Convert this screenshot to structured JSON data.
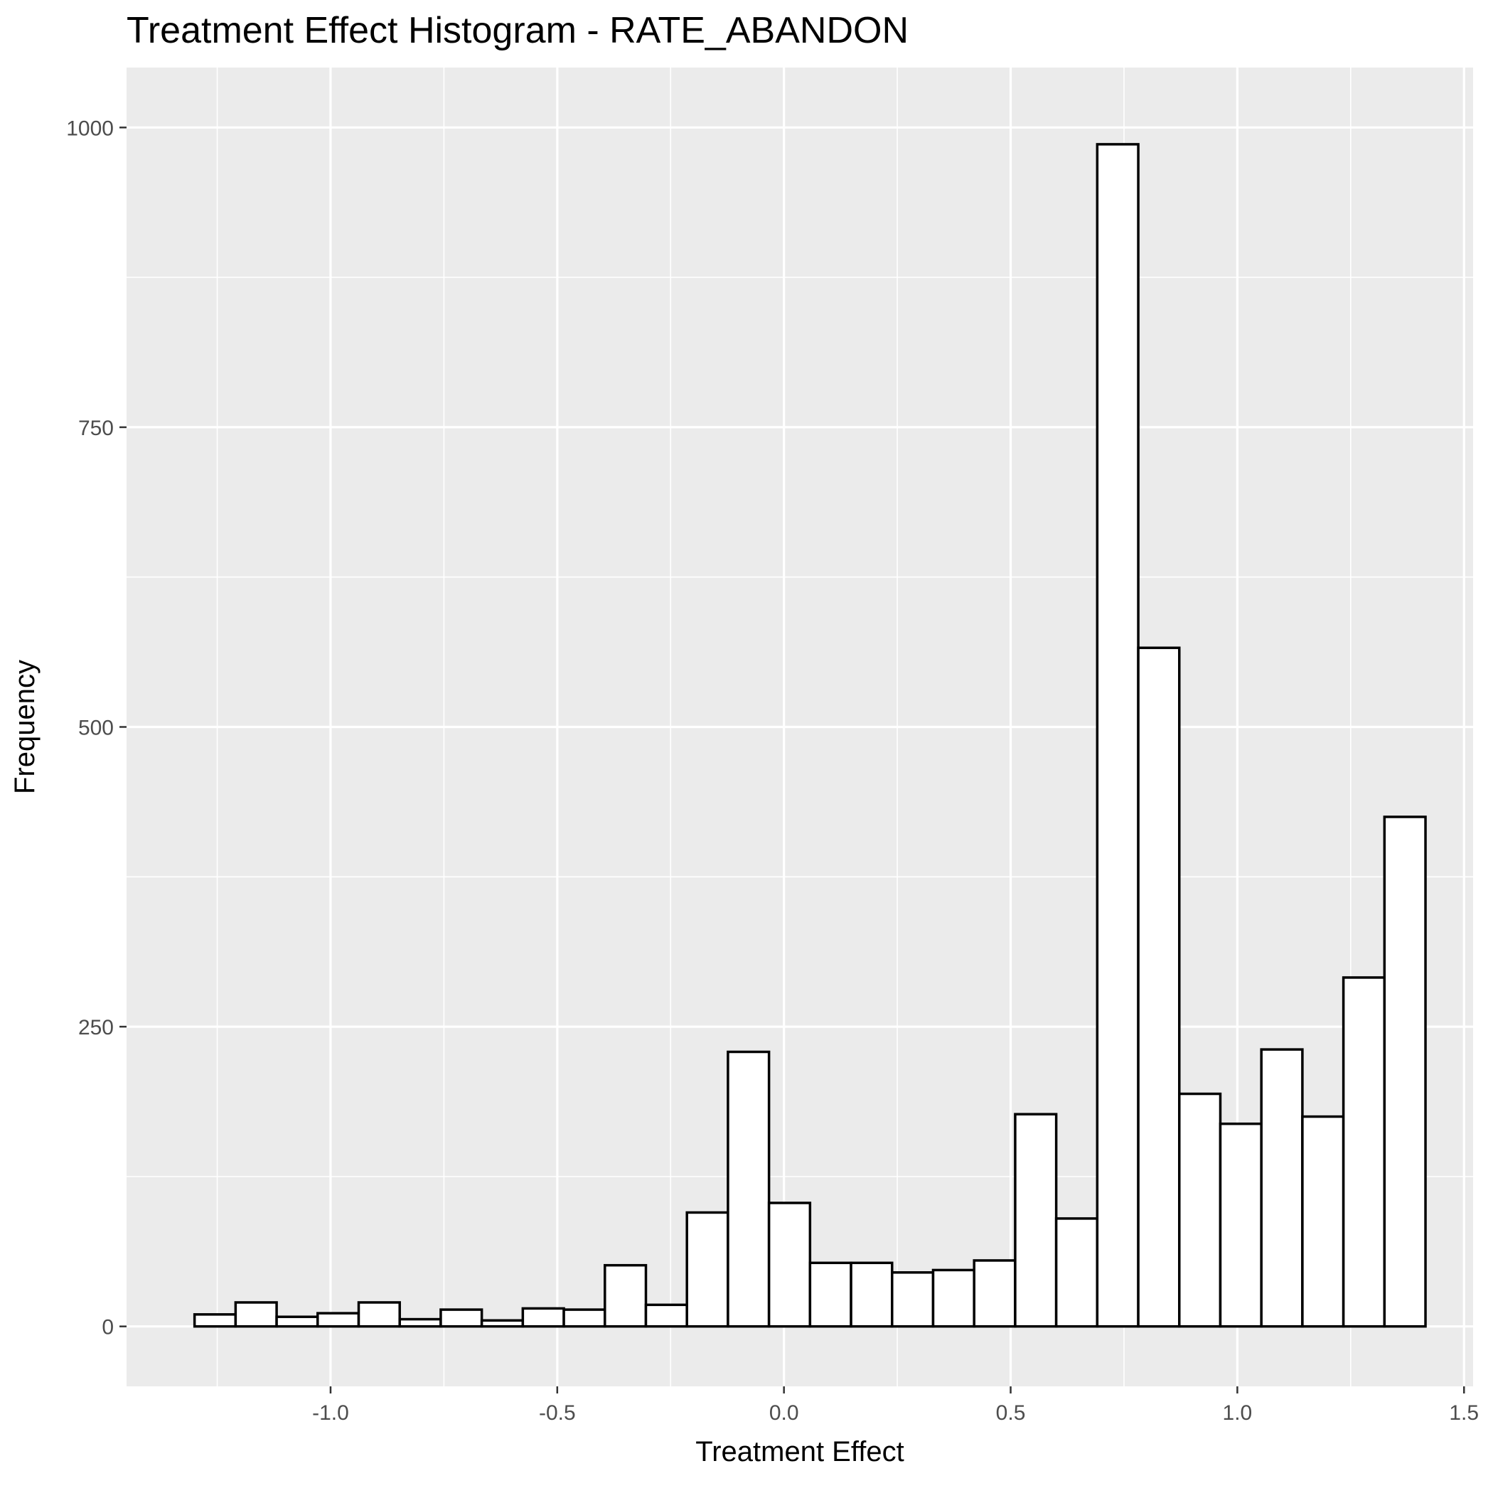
{
  "chart_data": {
    "type": "bar",
    "title": "Treatment Effect Histogram -  RATE_ABANDON",
    "xlabel": "Treatment Effect",
    "ylabel": "Frequency",
    "xlim": [
      -1.45,
      1.52
    ],
    "ylim": [
      -50,
      1050
    ],
    "x_ticks": [
      {
        "value": -1.0,
        "label": "-1.0"
      },
      {
        "value": -0.5,
        "label": "-0.5"
      },
      {
        "value": 0.0,
        "label": "0.0"
      },
      {
        "value": 0.5,
        "label": "0.5"
      },
      {
        "value": 1.0,
        "label": "1.0"
      },
      {
        "value": 1.5,
        "label": "1.5"
      }
    ],
    "y_ticks": [
      {
        "value": 0,
        "label": "0"
      },
      {
        "value": 250,
        "label": "250"
      },
      {
        "value": 500,
        "label": "500"
      },
      {
        "value": 750,
        "label": "750"
      },
      {
        "value": 1000,
        "label": "1000"
      }
    ],
    "grid": true,
    "bin_width": 0.0905,
    "bins_start": -1.3,
    "values": [
      10,
      20,
      8,
      11,
      20,
      6,
      14,
      5,
      15,
      14,
      51,
      18,
      95,
      229,
      103,
      53,
      53,
      45,
      47,
      55,
      177,
      90,
      986,
      566,
      194,
      169,
      231,
      175,
      291,
      425
    ]
  }
}
